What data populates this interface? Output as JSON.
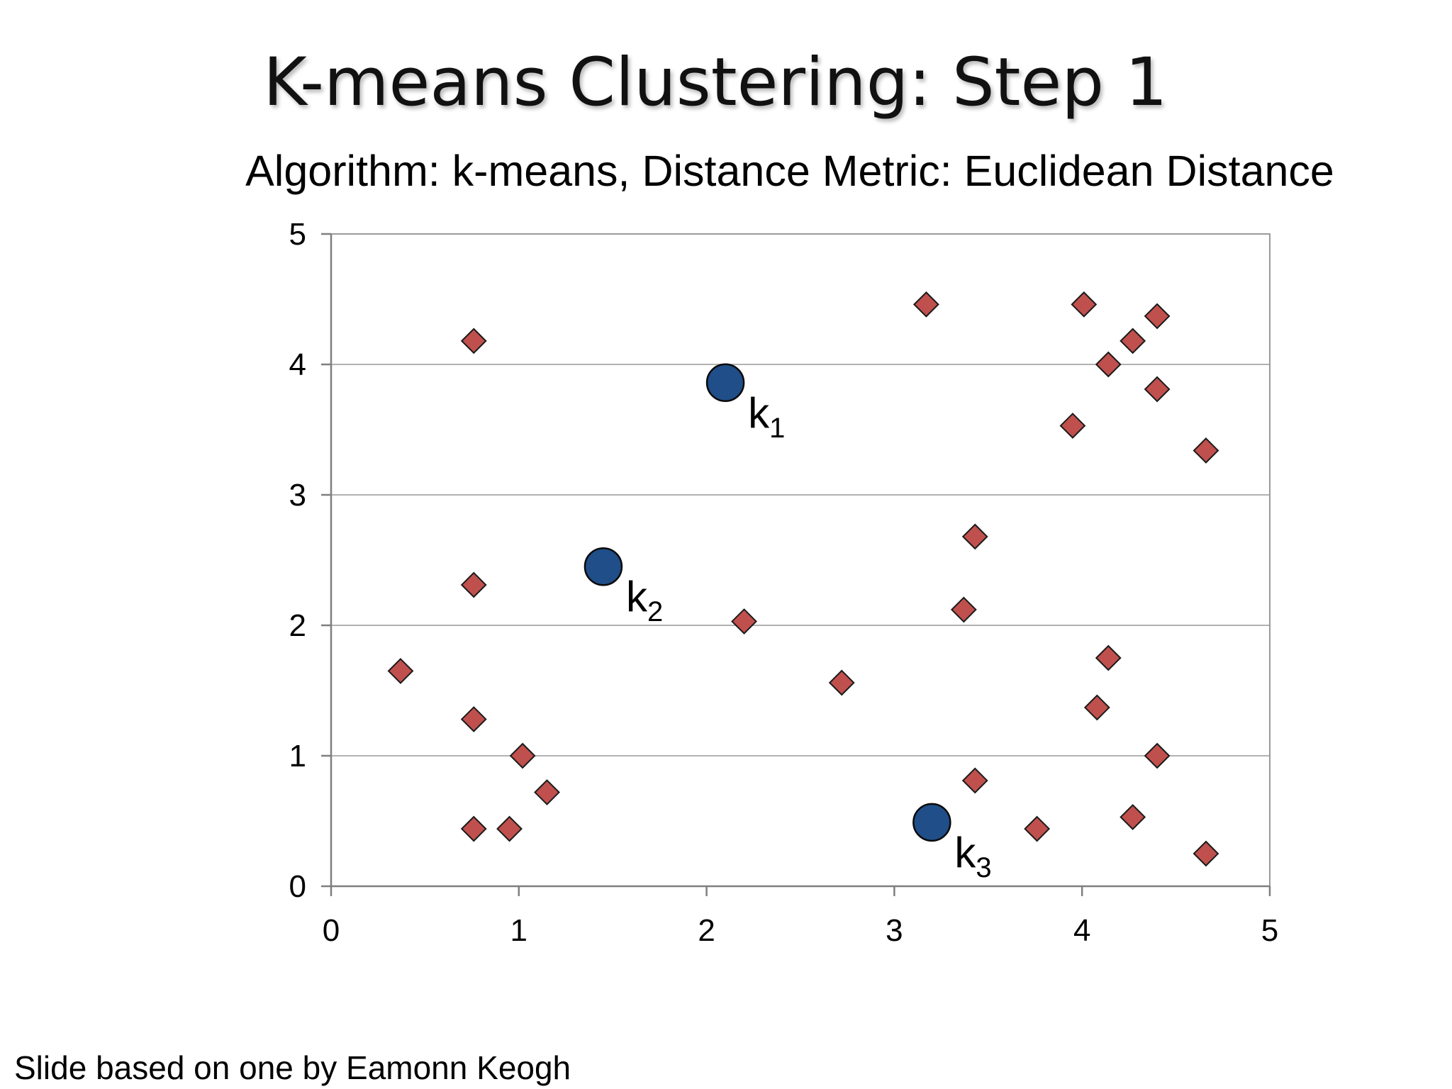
{
  "slide": {
    "title": "K-means Clustering: Step 1",
    "credit": "Slide based on one by Eamonn Keogh"
  },
  "chart_data": {
    "type": "scatter",
    "title": "Algorithm: k-means, Distance Metric: Euclidean Distance",
    "xlabel": "",
    "ylabel": "",
    "xlim": [
      0,
      5
    ],
    "ylim": [
      0,
      5
    ],
    "x_ticks": [
      "0",
      "1",
      "2",
      "3",
      "4",
      "5"
    ],
    "y_ticks": [
      "0",
      "1",
      "2",
      "3",
      "4",
      "5"
    ],
    "grid": "horizontal",
    "colors": {
      "points": "#c0504d",
      "point_edge": "#1a1a1a",
      "centroids": "#1f4e89",
      "centroid_edge": "#0a0a0a",
      "gridline": "#999999"
    },
    "series": [
      {
        "marker": "diamond",
        "x": [
          0.37,
          0.76,
          0.76,
          0.76,
          0.76,
          0.95,
          1.02,
          1.15,
          2.2,
          2.72,
          3.17,
          3.37,
          3.43,
          3.43,
          3.76,
          3.95,
          4.01,
          4.08,
          4.14,
          4.14,
          4.27,
          4.27,
          4.4,
          4.4,
          4.4,
          4.66,
          4.66
        ],
        "y": [
          1.65,
          4.18,
          2.31,
          1.28,
          0.44,
          0.44,
          1.0,
          0.72,
          2.03,
          1.56,
          4.46,
          2.12,
          2.68,
          0.81,
          0.44,
          3.53,
          4.46,
          1.37,
          4.0,
          1.75,
          4.18,
          0.53,
          4.37,
          3.81,
          1.0,
          3.34,
          0.25
        ]
      }
    ],
    "centroids": [
      {
        "label": "k",
        "subscript": "1",
        "x": 2.1,
        "y": 3.86
      },
      {
        "label": "k",
        "subscript": "2",
        "x": 1.45,
        "y": 2.45
      },
      {
        "label": "k",
        "subscript": "3",
        "x": 3.2,
        "y": 0.49
      }
    ]
  }
}
